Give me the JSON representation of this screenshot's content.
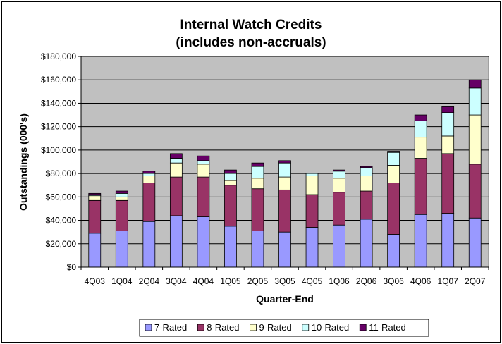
{
  "chart_data": {
    "type": "bar",
    "stacked": true,
    "title": [
      "Internal Watch Credits",
      "(includes non-accruals)"
    ],
    "xlabel": "Quarter-End",
    "ylabel": "Outstandings (000's)",
    "ylim": [
      0,
      180000
    ],
    "yticks": [
      "$0",
      "$20,000",
      "$40,000",
      "$60,000",
      "$80,000",
      "$100,000",
      "$120,000",
      "$140,000",
      "$160,000",
      "$180,000"
    ],
    "grid": true,
    "legend_position": "bottom",
    "categories": [
      "4Q03",
      "1Q04",
      "2Q04",
      "3Q04",
      "4Q04",
      "1Q05",
      "2Q05",
      "3Q05",
      "4Q05",
      "1Q06",
      "2Q06",
      "3Q06",
      "4Q06",
      "1Q07",
      "2Q07"
    ],
    "series": [
      {
        "name": "7-Rated",
        "color": "#9999FF",
        "values": [
          29000,
          31000,
          39000,
          44000,
          43000,
          35000,
          31000,
          30000,
          34000,
          36000,
          41000,
          28000,
          45000,
          46000,
          42000
        ]
      },
      {
        "name": "8-Rated",
        "color": "#993366",
        "values": [
          28000,
          26000,
          33000,
          33000,
          34000,
          35000,
          36000,
          36000,
          28000,
          28000,
          24000,
          44000,
          48000,
          51000,
          46000
        ]
      },
      {
        "name": "9-Rated",
        "color": "#FFFFCC",
        "values": [
          4000,
          3000,
          6000,
          12000,
          11000,
          4000,
          9000,
          11000,
          16000,
          12000,
          13000,
          15000,
          18000,
          15000,
          42000
        ]
      },
      {
        "name": "10-Rated",
        "color": "#CCFFFF",
        "values": [
          1000,
          3000,
          2000,
          4000,
          3000,
          6000,
          10000,
          12000,
          2000,
          6000,
          7000,
          11000,
          14000,
          20000,
          23000
        ]
      },
      {
        "name": "11-Rated",
        "color": "#660066",
        "values": [
          1000,
          2000,
          2000,
          4000,
          4000,
          3000,
          3000,
          2000,
          0,
          1000,
          1000,
          1000,
          5000,
          5000,
          7000
        ]
      }
    ]
  }
}
